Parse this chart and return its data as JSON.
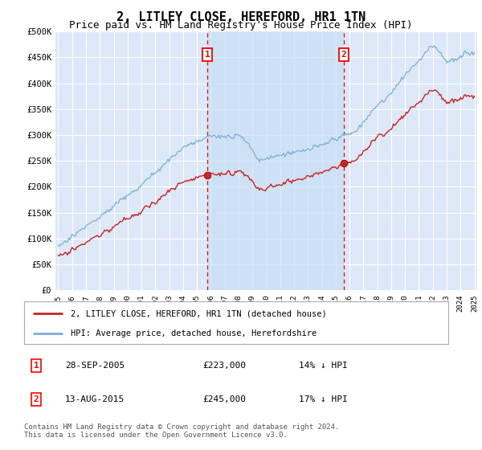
{
  "title": "2, LITLEY CLOSE, HEREFORD, HR1 1TN",
  "subtitle": "Price paid vs. HM Land Registry's House Price Index (HPI)",
  "title_fontsize": 11,
  "subtitle_fontsize": 9,
  "ylim": [
    0,
    500000
  ],
  "yticks": [
    0,
    50000,
    100000,
    150000,
    200000,
    250000,
    300000,
    350000,
    400000,
    450000,
    500000
  ],
  "ytick_labels": [
    "£0",
    "£50K",
    "£100K",
    "£150K",
    "£200K",
    "£250K",
    "£300K",
    "£350K",
    "£400K",
    "£450K",
    "£500K"
  ],
  "background_color": "#ffffff",
  "plot_bg_color": "#dce8f8",
  "grid_color": "#ffffff",
  "hpi_color": "#7bafd4",
  "price_color": "#cc2222",
  "shade_color": "#c8dff5",
  "transaction1_x": 2005.75,
  "transaction1_price": 223000,
  "transaction1_label": "28-SEP-2005",
  "transaction1_amount": "£223,000",
  "transaction1_note": "14% ↓ HPI",
  "transaction2_x": 2015.583,
  "transaction2_price": 245000,
  "transaction2_label": "13-AUG-2015",
  "transaction2_amount": "£245,000",
  "transaction2_note": "17% ↓ HPI",
  "legend_label_price": "2, LITLEY CLOSE, HEREFORD, HR1 1TN (detached house)",
  "legend_label_hpi": "HPI: Average price, detached house, Herefordshire",
  "footer": "Contains HM Land Registry data © Crown copyright and database right 2024.\nThis data is licensed under the Open Government Licence v3.0.",
  "xstart_year": 1995,
  "xend_year": 2025
}
